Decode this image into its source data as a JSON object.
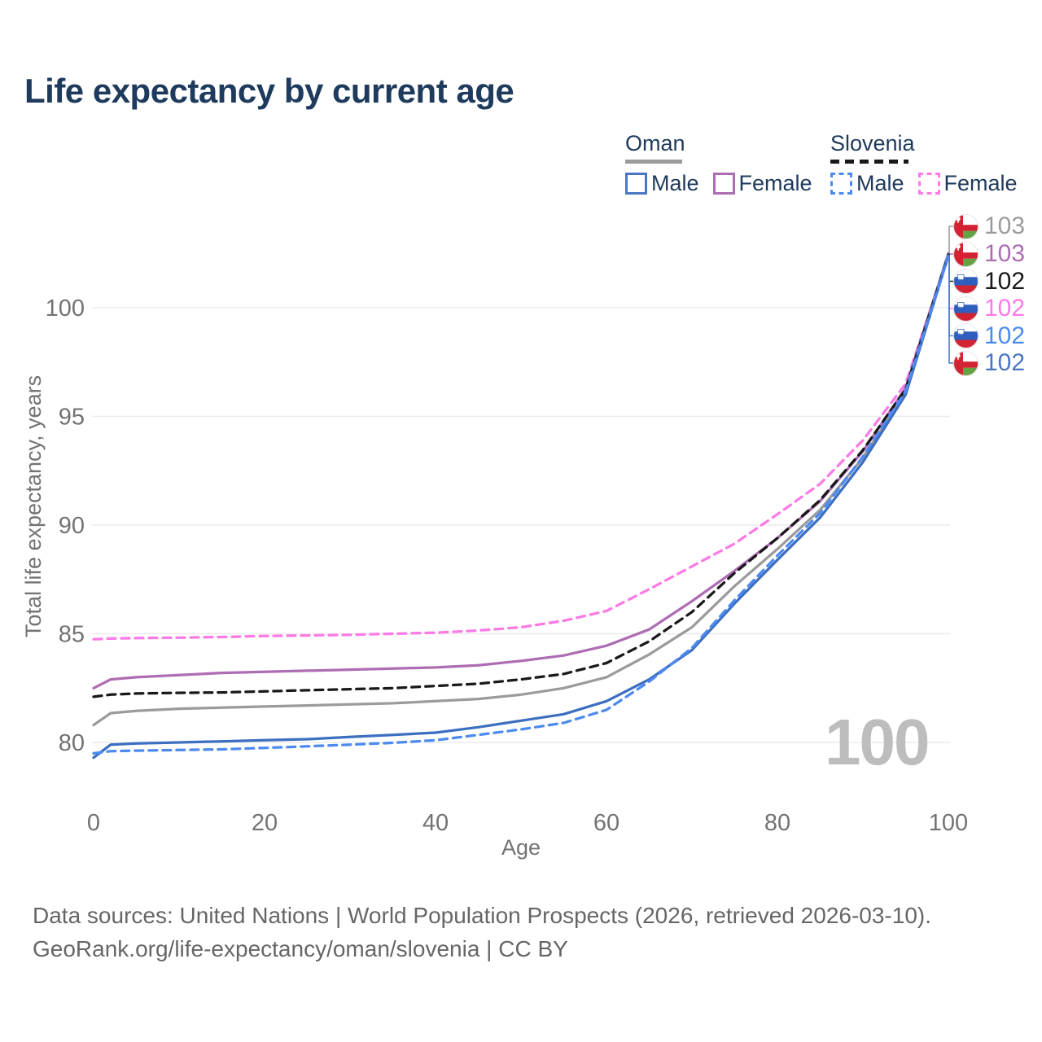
{
  "title": "Life expectancy by current age",
  "legend": {
    "groups": [
      {
        "label": "Oman",
        "line_style": "solid",
        "line_color": "#9b9b9b",
        "items": [
          {
            "label": "Male",
            "color": "#4a77c4"
          },
          {
            "label": "Female",
            "color": "#ad6db3"
          }
        ]
      },
      {
        "label": "Slovenia",
        "line_style": "dashed",
        "line_color": "#191919",
        "items": [
          {
            "label": "Male",
            "color": "#4d8af0"
          },
          {
            "label": "Female",
            "color": "#fb7ae6"
          }
        ]
      }
    ]
  },
  "watermark": "100",
  "footer": {
    "line1": "Data sources: United Nations | World Population Prospects (2026, retrieved 2026-03-10).",
    "line2": "GeoRank.org/life-expectancy/oman/slovenia | CC BY"
  },
  "chart_data": {
    "type": "line",
    "title": "Life expectancy by current age",
    "xlabel": "Age",
    "ylabel": "Total life expectancy, years",
    "xlim": [
      0,
      100
    ],
    "ylim": [
      78.5,
      103.5
    ],
    "xticks": [
      0,
      20,
      40,
      60,
      80,
      100
    ],
    "yticks": [
      80,
      85,
      90,
      95,
      100
    ],
    "grid": "horizontal",
    "legend_position": "top-right",
    "x": [
      0,
      2,
      5,
      10,
      15,
      20,
      25,
      30,
      35,
      40,
      45,
      50,
      55,
      60,
      65,
      70,
      75,
      80,
      85,
      90,
      95,
      100
    ],
    "series": [
      {
        "id": "slovenia-female",
        "country": "Slovenia",
        "sex": "Female",
        "color": "#fb7ae6",
        "dashed": true,
        "end_label": "102",
        "end_label_color": "#fb7ae6",
        "label_row": 3,
        "values": [
          84.75,
          84.78,
          84.8,
          84.82,
          84.85,
          84.9,
          84.92,
          84.95,
          85.0,
          85.05,
          85.15,
          85.3,
          85.6,
          86.05,
          87.05,
          88.1,
          89.15,
          90.5,
          91.9,
          93.9,
          96.5,
          102.4
        ]
      },
      {
        "id": "oman-female",
        "country": "Oman",
        "sex": "Female",
        "color": "#ad6db3",
        "dashed": false,
        "end_label": "103",
        "end_label_color": "#ad6db3",
        "label_row": 1,
        "values": [
          82.5,
          82.9,
          83.0,
          83.1,
          83.2,
          83.25,
          83.3,
          83.35,
          83.4,
          83.45,
          83.55,
          83.75,
          84.0,
          84.45,
          85.2,
          86.5,
          87.9,
          89.4,
          91.1,
          93.4,
          96.3,
          102.5
        ]
      },
      {
        "id": "oman-combined",
        "country": "Oman",
        "sex": "Combined",
        "color": "#9b9b9b",
        "dashed": false,
        "end_label": "103",
        "end_label_color": "#9b9b9b",
        "label_row": 0,
        "values": [
          80.8,
          81.35,
          81.45,
          81.55,
          81.6,
          81.65,
          81.7,
          81.75,
          81.8,
          81.9,
          82.0,
          82.2,
          82.5,
          83.0,
          84.05,
          85.3,
          87.2,
          88.9,
          90.7,
          93.1,
          96.1,
          102.5
        ]
      },
      {
        "id": "slovenia-combined",
        "country": "Slovenia",
        "sex": "Combined",
        "color": "#191919",
        "dashed": true,
        "end_label": "102",
        "end_label_color": "#191919",
        "label_row": 2,
        "values": [
          82.1,
          82.2,
          82.25,
          82.28,
          82.3,
          82.35,
          82.4,
          82.45,
          82.5,
          82.6,
          82.7,
          82.9,
          83.15,
          83.65,
          84.65,
          86.0,
          87.8,
          89.4,
          91.15,
          93.45,
          96.25,
          102.45
        ]
      },
      {
        "id": "oman-male",
        "country": "Oman",
        "sex": "Male",
        "color": "#3d6fc0",
        "dashed": false,
        "end_label": "102",
        "end_label_color": "#4a77c4",
        "label_row": 5,
        "values": [
          79.3,
          79.9,
          79.95,
          80.0,
          80.05,
          80.1,
          80.15,
          80.25,
          80.35,
          80.45,
          80.7,
          81.0,
          81.3,
          81.9,
          82.9,
          84.25,
          86.4,
          88.4,
          90.35,
          92.9,
          96.0,
          102.4
        ]
      },
      {
        "id": "slovenia-male",
        "country": "Slovenia",
        "sex": "Male",
        "color": "#4d8af0",
        "dashed": true,
        "end_label": "102",
        "end_label_color": "#4d8af0",
        "label_row": 4,
        "values": [
          79.5,
          79.6,
          79.62,
          79.65,
          79.68,
          79.75,
          79.82,
          79.9,
          79.98,
          80.1,
          80.35,
          80.6,
          80.9,
          81.5,
          82.8,
          84.35,
          86.55,
          88.6,
          90.55,
          93.15,
          96.15,
          102.4
        ]
      }
    ]
  }
}
